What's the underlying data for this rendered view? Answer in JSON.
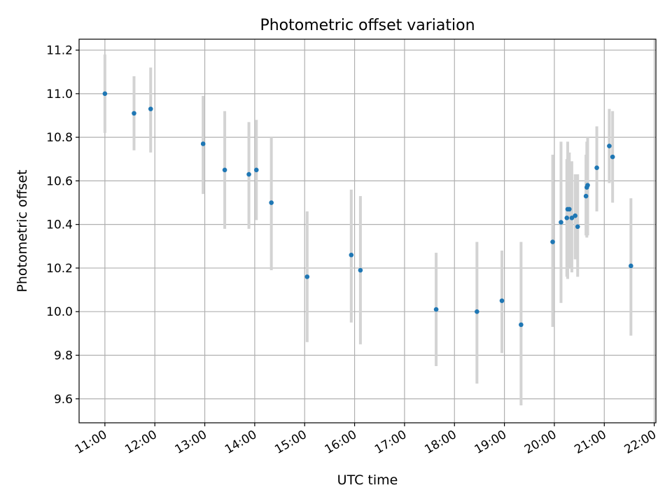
{
  "chart_data": {
    "type": "scatter",
    "title": "Photometric offset variation",
    "xlabel": "UTC time",
    "ylabel": "Photometric offset",
    "x_unit": "UTC time (HH:MM)",
    "xlim": [
      "10:29",
      "22:02"
    ],
    "ylim": [
      9.49,
      11.25
    ],
    "xticks": [
      "11:00",
      "12:00",
      "13:00",
      "14:00",
      "15:00",
      "16:00",
      "17:00",
      "18:00",
      "19:00",
      "20:00",
      "21:00",
      "22:00"
    ],
    "yticks": [
      "9.6",
      "9.8",
      "10.0",
      "10.2",
      "10.4",
      "10.6",
      "10.8",
      "11.0",
      "11.2"
    ],
    "grid": true,
    "colors": {
      "point": "#1f77b4",
      "errorbar": "#d3d3d3",
      "grid": "#b0b0b0"
    },
    "series": [
      {
        "points": [
          {
            "x": "11:00",
            "y": 11.0,
            "ylow": 10.82,
            "yhigh": 11.18
          },
          {
            "x": "11:35",
            "y": 10.91,
            "ylow": 10.74,
            "yhigh": 11.08
          },
          {
            "x": "11:55",
            "y": 10.93,
            "ylow": 10.73,
            "yhigh": 11.12
          },
          {
            "x": "12:58",
            "y": 10.77,
            "ylow": 10.54,
            "yhigh": 10.99
          },
          {
            "x": "13:24",
            "y": 10.65,
            "ylow": 10.38,
            "yhigh": 10.92
          },
          {
            "x": "13:53",
            "y": 10.63,
            "ylow": 10.38,
            "yhigh": 10.87
          },
          {
            "x": "14:02",
            "y": 10.65,
            "ylow": 10.42,
            "yhigh": 10.88
          },
          {
            "x": "14:20",
            "y": 10.5,
            "ylow": 10.19,
            "yhigh": 10.8
          },
          {
            "x": "15:03",
            "y": 10.16,
            "ylow": 9.86,
            "yhigh": 10.46
          },
          {
            "x": "15:56",
            "y": 10.26,
            "ylow": 9.95,
            "yhigh": 10.56
          },
          {
            "x": "16:07",
            "y": 10.19,
            "ylow": 9.85,
            "yhigh": 10.53
          },
          {
            "x": "17:38",
            "y": 10.01,
            "ylow": 9.75,
            "yhigh": 10.27
          },
          {
            "x": "18:27",
            "y": 10.0,
            "ylow": 9.67,
            "yhigh": 10.32
          },
          {
            "x": "18:57",
            "y": 10.05,
            "ylow": 9.81,
            "yhigh": 10.28
          },
          {
            "x": "19:20",
            "y": 9.94,
            "ylow": 9.57,
            "yhigh": 10.32
          },
          {
            "x": "19:58",
            "y": 10.32,
            "ylow": 9.93,
            "yhigh": 10.72
          },
          {
            "x": "20:08",
            "y": 10.41,
            "ylow": 10.04,
            "yhigh": 10.78
          },
          {
            "x": "20:15",
            "y": 10.43,
            "ylow": 10.16,
            "yhigh": 10.7
          },
          {
            "x": "20:16",
            "y": 10.47,
            "ylow": 10.15,
            "yhigh": 10.78
          },
          {
            "x": "20:18",
            "y": 10.47,
            "ylow": 10.2,
            "yhigh": 10.73
          },
          {
            "x": "20:21",
            "y": 10.43,
            "ylow": 10.18,
            "yhigh": 10.69
          },
          {
            "x": "20:25",
            "y": 10.44,
            "ylow": 10.24,
            "yhigh": 10.63
          },
          {
            "x": "20:28",
            "y": 10.39,
            "ylow": 10.16,
            "yhigh": 10.63
          },
          {
            "x": "20:38",
            "y": 10.53,
            "ylow": 10.35,
            "yhigh": 10.72
          },
          {
            "x": "20:39",
            "y": 10.57,
            "ylow": 10.34,
            "yhigh": 10.78
          },
          {
            "x": "20:40",
            "y": 10.58,
            "ylow": 10.35,
            "yhigh": 10.8
          },
          {
            "x": "20:51",
            "y": 10.66,
            "ylow": 10.46,
            "yhigh": 10.85
          },
          {
            "x": "21:06",
            "y": 10.76,
            "ylow": 10.59,
            "yhigh": 10.93
          },
          {
            "x": "21:10",
            "y": 10.71,
            "ylow": 10.5,
            "yhigh": 10.92
          },
          {
            "x": "21:32",
            "y": 10.21,
            "ylow": 9.89,
            "yhigh": 10.52
          }
        ]
      }
    ]
  }
}
